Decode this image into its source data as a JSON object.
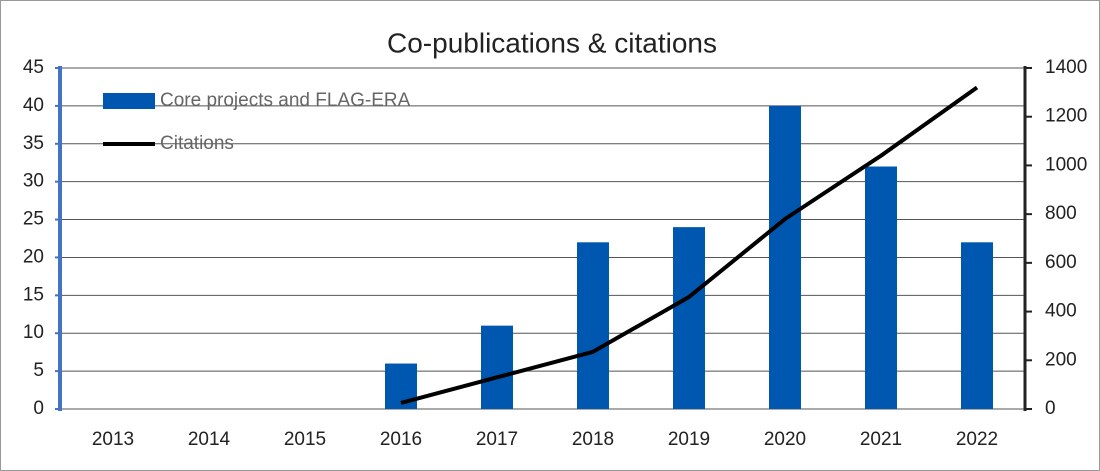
{
  "chart_data": {
    "type": "bar",
    "title": "Co-publications & citations",
    "categories": [
      "2013",
      "2014",
      "2015",
      "2016",
      "2017",
      "2018",
      "2019",
      "2020",
      "2021",
      "2022"
    ],
    "series": [
      {
        "name": "Core projects and FLAG-ERA",
        "type": "bar",
        "color": "#0057b0",
        "values": [
          null,
          null,
          null,
          6,
          11,
          22,
          24,
          40,
          32,
          22
        ]
      },
      {
        "name": "Citations",
        "type": "line",
        "axis": "y2",
        "color": "#000000",
        "values": [
          null,
          null,
          null,
          25,
          130,
          235,
          460,
          780,
          1040,
          1320
        ]
      }
    ],
    "ylim": [
      0,
      45
    ],
    "yticks": [
      0,
      5,
      10,
      15,
      20,
      25,
      30,
      35,
      40,
      45
    ],
    "y2lim": [
      0,
      1400
    ],
    "y2ticks": [
      0,
      200,
      400,
      600,
      800,
      1000,
      1200,
      1400
    ],
    "grid": true,
    "legend": "top-left"
  }
}
